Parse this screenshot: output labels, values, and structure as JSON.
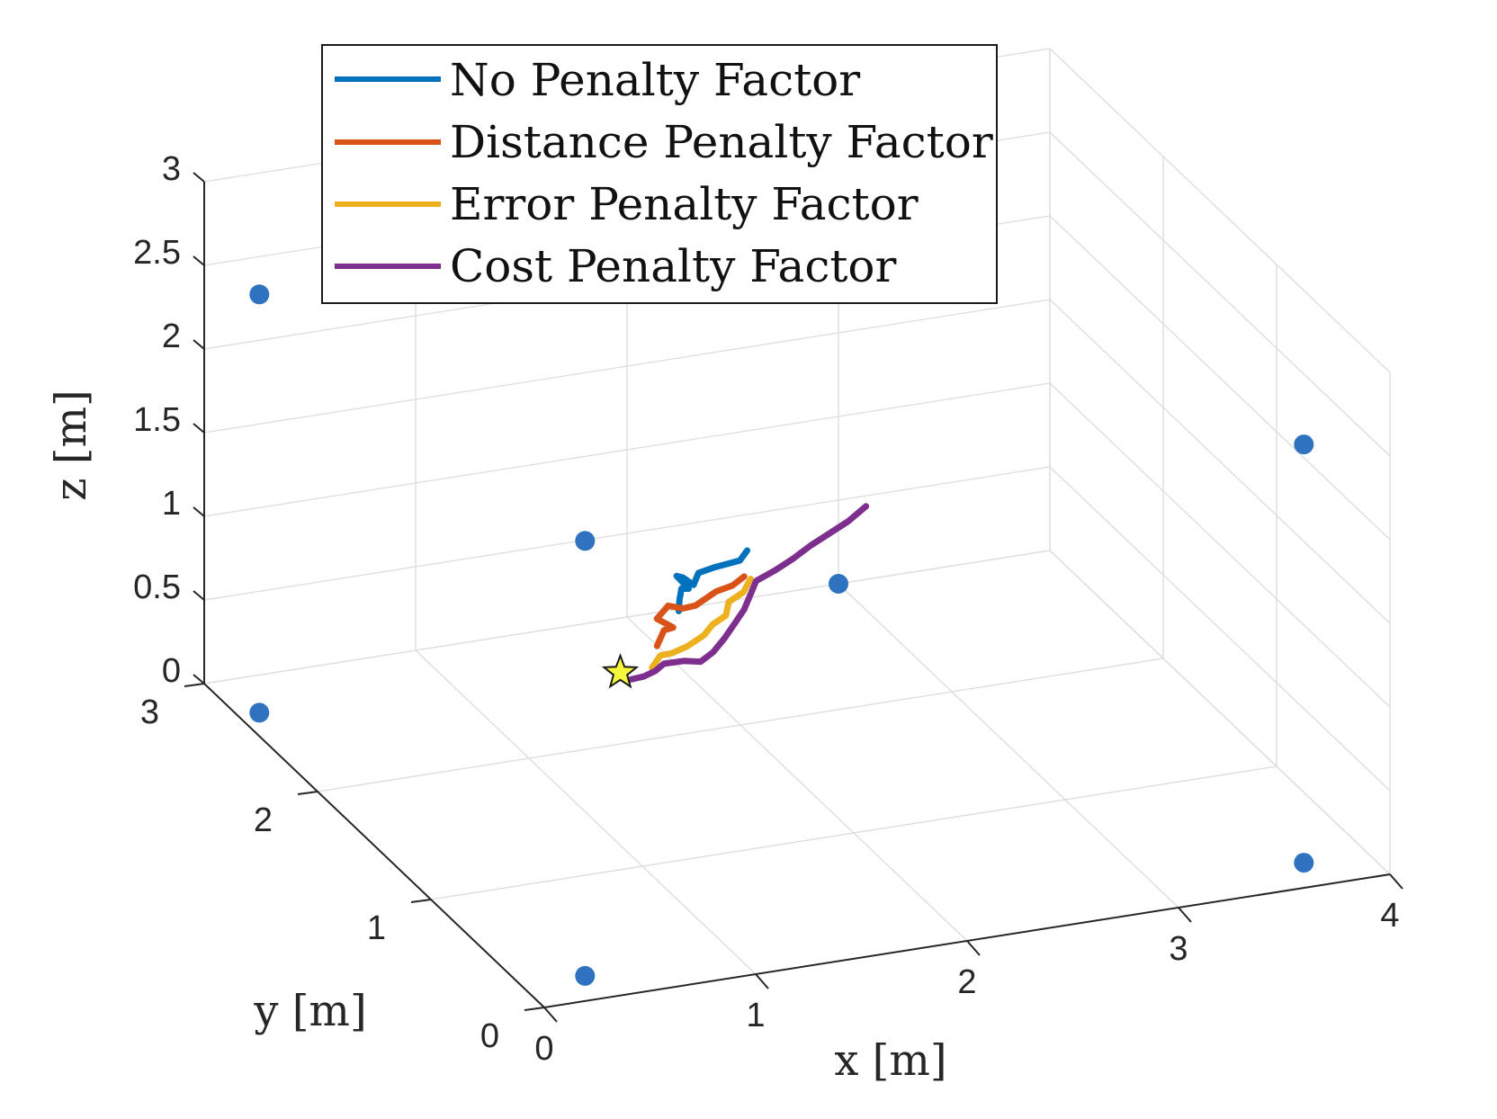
{
  "chart_data": {
    "type": "line3d",
    "xlabel": "x [m]",
    "ylabel": "y [m]",
    "zlabel": "z [m]",
    "xlim": [
      0,
      4
    ],
    "ylim": [
      0,
      3
    ],
    "zlim": [
      0,
      3
    ],
    "xticks": [
      "0",
      "1",
      "2",
      "3",
      "4"
    ],
    "yticks": [
      "0",
      "1",
      "2",
      "3"
    ],
    "zticks": [
      "0",
      "0.5",
      "1",
      "1.5",
      "2",
      "2.5",
      "3"
    ],
    "grid": true,
    "legend_position": "top",
    "anchors": [
      {
        "x": 0.3,
        "y": 0.2,
        "z": 0
      },
      {
        "x": 0.1,
        "y": 2.7,
        "z": 0
      },
      {
        "x": 3.7,
        "y": 0.2,
        "z": 0
      },
      {
        "x": 3.0,
        "y": 3.0,
        "z": 0
      },
      {
        "x": 0.1,
        "y": 2.7,
        "z": 2.5
      },
      {
        "x": 3.7,
        "y": 0.2,
        "z": 2.5
      },
      {
        "x": 0.3,
        "y": 0.2,
        "z": 2.6
      },
      {
        "x": 3.0,
        "y": 3.0,
        "z": 3.0
      }
    ],
    "anchor_color": "#2f73c0",
    "start": {
      "x": 1.7,
      "y": 2.5,
      "z": 0.05
    },
    "start_color": "#f5f53c",
    "series": [
      {
        "name": "No Penalty Factor",
        "color": "#0072bd",
        "points": [
          {
            "x": 1.95,
            "y": 2.45,
            "z": 0.4
          },
          {
            "x": 1.98,
            "y": 2.5,
            "z": 0.43
          },
          {
            "x": 2.0,
            "y": 2.52,
            "z": 0.48
          },
          {
            "x": 2.05,
            "y": 2.55,
            "z": 0.45
          },
          {
            "x": 2.02,
            "y": 2.6,
            "z": 0.5
          },
          {
            "x": 2.06,
            "y": 2.62,
            "z": 0.47
          },
          {
            "x": 2.1,
            "y": 2.6,
            "z": 0.43
          },
          {
            "x": 2.15,
            "y": 2.65,
            "z": 0.46
          },
          {
            "x": 2.25,
            "y": 2.7,
            "z": 0.44
          },
          {
            "x": 2.4,
            "y": 2.75,
            "z": 0.42
          },
          {
            "x": 2.45,
            "y": 2.78,
            "z": 0.45
          }
        ]
      },
      {
        "name": "Distance Penalty Factor",
        "color": "#d95319",
        "points": [
          {
            "x": 1.82,
            "y": 2.4,
            "z": 0.25
          },
          {
            "x": 1.88,
            "y": 2.45,
            "z": 0.3
          },
          {
            "x": 1.95,
            "y": 2.5,
            "z": 0.27
          },
          {
            "x": 1.9,
            "y": 2.55,
            "z": 0.3
          },
          {
            "x": 1.98,
            "y": 2.6,
            "z": 0.33
          },
          {
            "x": 2.05,
            "y": 2.6,
            "z": 0.3
          },
          {
            "x": 2.12,
            "y": 2.62,
            "z": 0.29
          },
          {
            "x": 2.25,
            "y": 2.68,
            "z": 0.31
          },
          {
            "x": 2.35,
            "y": 2.72,
            "z": 0.3
          },
          {
            "x": 2.42,
            "y": 2.75,
            "z": 0.32
          }
        ]
      },
      {
        "name": "Error Penalty Factor",
        "color": "#edb120",
        "points": [
          {
            "x": 1.85,
            "y": 2.5,
            "z": 0.05
          },
          {
            "x": 1.9,
            "y": 2.52,
            "z": 0.1
          },
          {
            "x": 1.97,
            "y": 2.55,
            "z": 0.08
          },
          {
            "x": 2.05,
            "y": 2.56,
            "z": 0.1
          },
          {
            "x": 2.15,
            "y": 2.6,
            "z": 0.12
          },
          {
            "x": 2.2,
            "y": 2.62,
            "z": 0.16
          },
          {
            "x": 2.28,
            "y": 2.65,
            "z": 0.18
          },
          {
            "x": 2.32,
            "y": 2.7,
            "z": 0.22
          },
          {
            "x": 2.4,
            "y": 2.72,
            "z": 0.25
          },
          {
            "x": 2.45,
            "y": 2.75,
            "z": 0.3
          }
        ]
      },
      {
        "name": "Cost Penalty Factor",
        "color": "#7e2f8e",
        "points": [
          {
            "x": 1.75,
            "y": 2.5,
            "z": 0.0
          },
          {
            "x": 1.8,
            "y": 2.48,
            "z": 0.02
          },
          {
            "x": 1.85,
            "y": 2.47,
            "z": 0.05
          },
          {
            "x": 1.9,
            "y": 2.49,
            "z": 0.07
          },
          {
            "x": 2.0,
            "y": 2.5,
            "z": 0.06
          },
          {
            "x": 2.08,
            "y": 2.5,
            "z": 0.04
          },
          {
            "x": 2.15,
            "y": 2.52,
            "z": 0.07
          },
          {
            "x": 2.22,
            "y": 2.55,
            "z": 0.12
          },
          {
            "x": 2.3,
            "y": 2.6,
            "z": 0.17
          },
          {
            "x": 2.35,
            "y": 2.62,
            "z": 0.22
          },
          {
            "x": 2.4,
            "y": 2.66,
            "z": 0.27
          },
          {
            "x": 2.45,
            "y": 2.7,
            "z": 0.32
          },
          {
            "x": 2.55,
            "y": 2.72,
            "z": 0.35
          },
          {
            "x": 2.65,
            "y": 2.75,
            "z": 0.38
          },
          {
            "x": 2.75,
            "y": 2.78,
            "z": 0.42
          },
          {
            "x": 2.85,
            "y": 2.8,
            "z": 0.46
          },
          {
            "x": 2.95,
            "y": 2.82,
            "z": 0.5
          },
          {
            "x": 3.05,
            "y": 2.85,
            "z": 0.55
          }
        ]
      }
    ]
  }
}
